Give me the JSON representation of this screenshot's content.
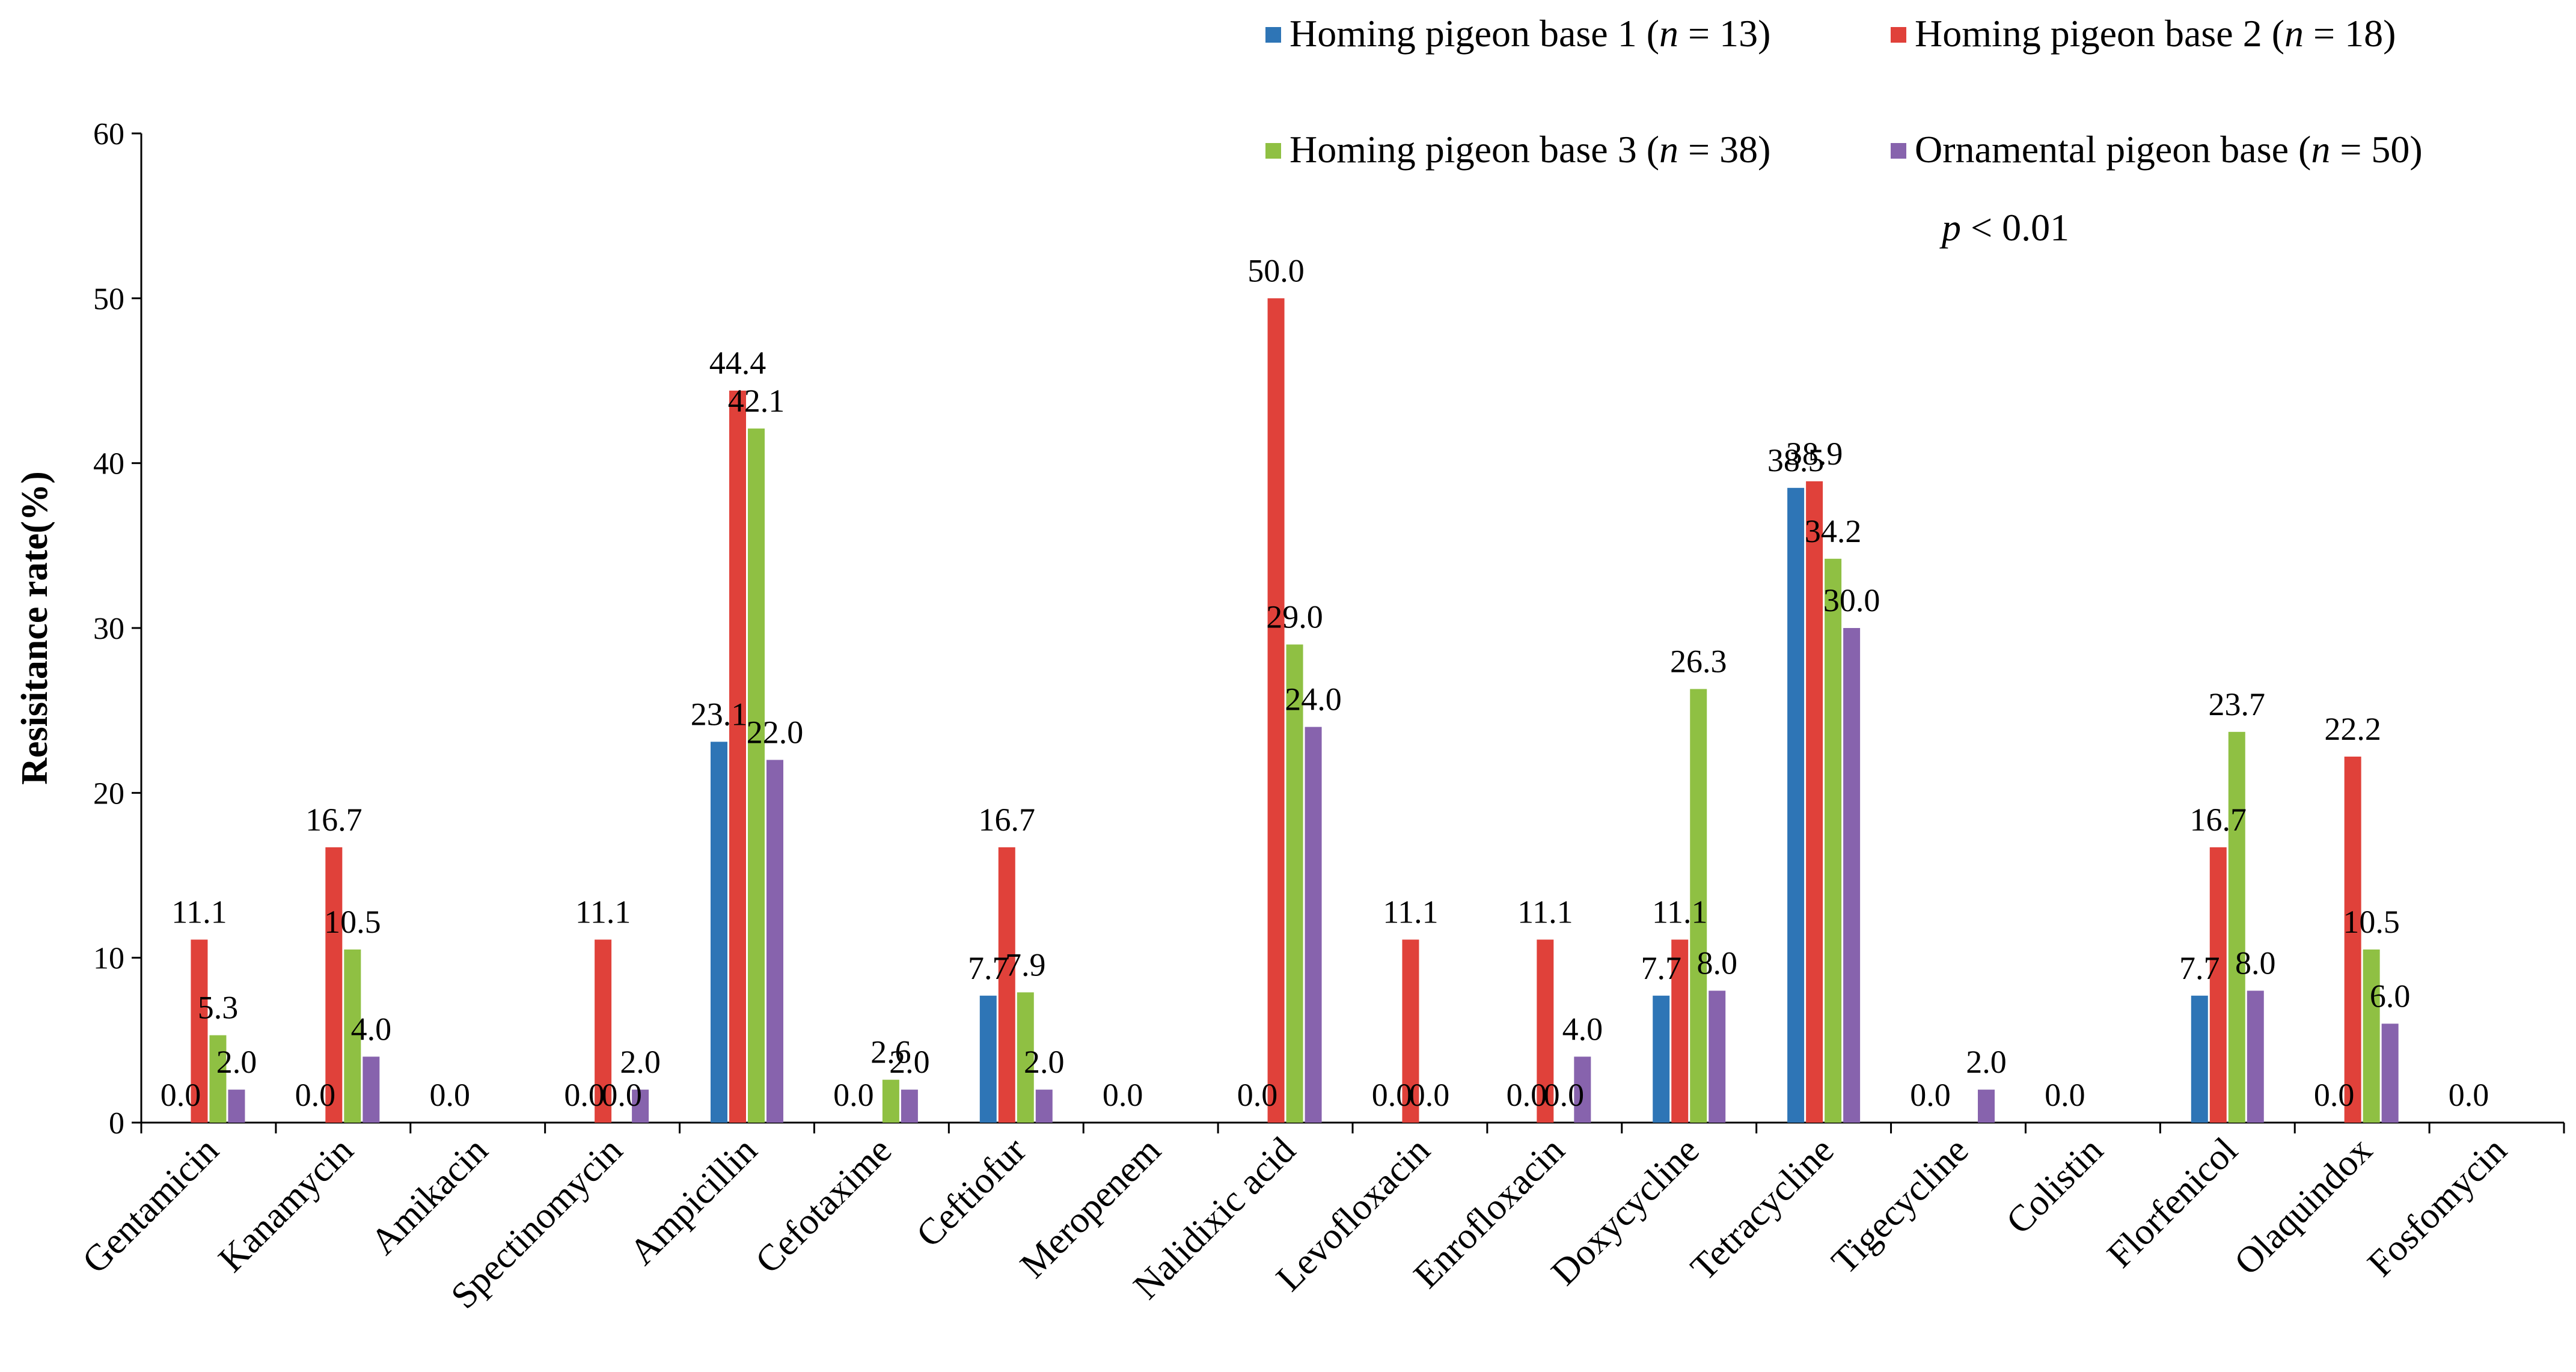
{
  "chart_data": {
    "type": "bar",
    "title": "",
    "xlabel": "",
    "ylabel": "Resisitance rate(%)",
    "ylim": [
      0,
      60
    ],
    "yticks": [
      "0",
      "10",
      "20",
      "30",
      "40",
      "50",
      "60"
    ],
    "categories": [
      "Gentamicin",
      "Kanamycin",
      "Amikacin",
      "Spectinomycin",
      "Ampicillin",
      "Cefotaxime",
      "Ceftiofur",
      "Meropenem",
      "Nalidixic acid",
      "Levofloxacin",
      "Enrofloxacin",
      "Doxycycline",
      "Tetracycline",
      "Tigecycline",
      "Colistin",
      "Florfenicol",
      "Olaquindox",
      "Fosfomycin"
    ],
    "series": [
      {
        "name": "Homing pigeon base 1",
        "n_text": "(n = 13)",
        "n_label": "n",
        "n_value": "= 13)",
        "color": "#2e75b6",
        "values": [
          0.0,
          0.0,
          0.0,
          0.0,
          23.1,
          0.0,
          7.7,
          0.0,
          0.0,
          0.0,
          0.0,
          7.7,
          38.5,
          0.0,
          0.0,
          7.7,
          0.0,
          0.0
        ]
      },
      {
        "name": "Homing pigeon base 2",
        "n_label": "n",
        "n_value": "= 18)",
        "color": "#e0413a",
        "values": [
          11.1,
          16.7,
          0.0,
          11.1,
          44.4,
          0.0,
          16.7,
          0.0,
          50.0,
          11.1,
          11.1,
          11.1,
          38.9,
          0.0,
          0.0,
          16.7,
          22.2,
          0.0
        ]
      },
      {
        "name": "Homing pigeon base 3",
        "n_label": "n",
        "n_value": "= 38)",
        "color": "#8fc043",
        "values": [
          5.3,
          10.5,
          0.0,
          0.0,
          42.1,
          2.6,
          7.9,
          0.0,
          29.0,
          0.0,
          0.0,
          26.3,
          34.2,
          0.0,
          0.0,
          23.7,
          10.5,
          0.0
        ]
      },
      {
        "name": "Ornamental pigeon base",
        "n_label": "n",
        "n_value": "= 50)",
        "color": "#8763ad",
        "values": [
          2.0,
          4.0,
          0.0,
          2.0,
          22.0,
          2.0,
          2.0,
          0.0,
          24.0,
          0.0,
          4.0,
          8.0,
          30.0,
          2.0,
          0.0,
          8.0,
          6.0,
          0.0
        ]
      }
    ],
    "data_labels": [
      {
        "cat": 0,
        "s": 0,
        "text": "0.0"
      },
      {
        "cat": 0,
        "s": 1,
        "text": "11.1"
      },
      {
        "cat": 0,
        "s": 2,
        "text": "5.3"
      },
      {
        "cat": 0,
        "s": 3,
        "text": "2.0"
      },
      {
        "cat": 1,
        "s": 0,
        "text": "0.0"
      },
      {
        "cat": 1,
        "s": 1,
        "text": "16.7"
      },
      {
        "cat": 1,
        "s": 2,
        "text": "10.5"
      },
      {
        "cat": 1,
        "s": 3,
        "text": "4.0"
      },
      {
        "cat": 2,
        "s": 0,
        "text": "0.0"
      },
      {
        "cat": 3,
        "s": 0,
        "text": "0.0"
      },
      {
        "cat": 3,
        "s": 1,
        "text": "11.1"
      },
      {
        "cat": 3,
        "s": 2,
        "text": "0.0"
      },
      {
        "cat": 3,
        "s": 3,
        "text": "2.0"
      },
      {
        "cat": 4,
        "s": 0,
        "text": "23.1"
      },
      {
        "cat": 4,
        "s": 1,
        "text": "44.4"
      },
      {
        "cat": 4,
        "s": 2,
        "text": "42.1"
      },
      {
        "cat": 4,
        "s": 3,
        "text": "22.0"
      },
      {
        "cat": 5,
        "s": 0,
        "text": "0.0"
      },
      {
        "cat": 5,
        "s": 2,
        "text": "2.6"
      },
      {
        "cat": 5,
        "s": 3,
        "text": "2.0"
      },
      {
        "cat": 6,
        "s": 0,
        "text": "7.7"
      },
      {
        "cat": 6,
        "s": 1,
        "text": "16.7"
      },
      {
        "cat": 6,
        "s": 2,
        "text": "7.9"
      },
      {
        "cat": 6,
        "s": 3,
        "text": "2.0"
      },
      {
        "cat": 7,
        "s": 0,
        "text": "0.0"
      },
      {
        "cat": 8,
        "s": 0,
        "text": "0.0"
      },
      {
        "cat": 8,
        "s": 1,
        "text": "50.0"
      },
      {
        "cat": 8,
        "s": 2,
        "text": "29.0"
      },
      {
        "cat": 8,
        "s": 3,
        "text": "24.0"
      },
      {
        "cat": 9,
        "s": 0,
        "text": "0.0"
      },
      {
        "cat": 9,
        "s": 1,
        "text": "11.1"
      },
      {
        "cat": 9,
        "s": 2,
        "text": "0.0"
      },
      {
        "cat": 10,
        "s": 0,
        "text": "0.0"
      },
      {
        "cat": 10,
        "s": 1,
        "text": "11.1"
      },
      {
        "cat": 10,
        "s": 2,
        "text": "0.0"
      },
      {
        "cat": 10,
        "s": 3,
        "text": "4.0"
      },
      {
        "cat": 11,
        "s": 0,
        "text": "7.7"
      },
      {
        "cat": 11,
        "s": 1,
        "text": "11.1"
      },
      {
        "cat": 11,
        "s": 2,
        "text": "26.3"
      },
      {
        "cat": 11,
        "s": 3,
        "text": "8.0"
      },
      {
        "cat": 12,
        "s": 0,
        "text": "38.5"
      },
      {
        "cat": 12,
        "s": 1,
        "text": "38.9"
      },
      {
        "cat": 12,
        "s": 2,
        "text": "34.2"
      },
      {
        "cat": 12,
        "s": 3,
        "text": "30.0"
      },
      {
        "cat": 13,
        "s": 0,
        "text": "0.0"
      },
      {
        "cat": 13,
        "s": 3,
        "text": "2.0"
      },
      {
        "cat": 14,
        "s": 0,
        "text": "0.0"
      },
      {
        "cat": 15,
        "s": 0,
        "text": "7.7"
      },
      {
        "cat": 15,
        "s": 1,
        "text": "16.7"
      },
      {
        "cat": 15,
        "s": 2,
        "text": "23.7"
      },
      {
        "cat": 15,
        "s": 3,
        "text": "8.0"
      },
      {
        "cat": 16,
        "s": 0,
        "text": "0.0"
      },
      {
        "cat": 16,
        "s": 1,
        "text": "22.2"
      },
      {
        "cat": 16,
        "s": 2,
        "text": "10.5"
      },
      {
        "cat": 16,
        "s": 3,
        "text": "6.0"
      },
      {
        "cat": 17,
        "s": 0,
        "text": "0.0"
      }
    ],
    "annotation": {
      "p_symbol": "p",
      "p_rest": "< 0.01"
    },
    "legend_position": "top-right",
    "grid": false
  }
}
